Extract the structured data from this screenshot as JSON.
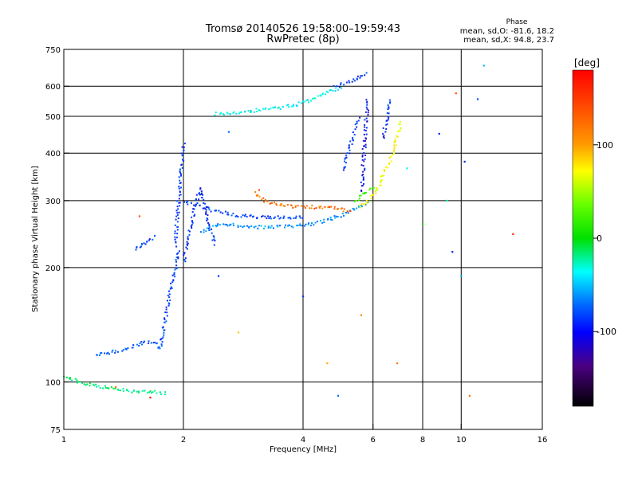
{
  "chart_data": {
    "type": "scatter",
    "title": "Tromsø 20140526  19:58:00–19:59:43",
    "subtitle": "RwPretec (8p)",
    "xlabel": "Frequency [MHz]",
    "ylabel": "Stationary phase Virtual Height [km]",
    "x_scale": "log",
    "y_scale": "log",
    "xlim": [
      1,
      16
    ],
    "ylim": [
      75,
      750
    ],
    "x_ticks": [
      1,
      2,
      4,
      6,
      8,
      10,
      16
    ],
    "x_ticklabels": [
      "1",
      "2",
      "4",
      "6",
      "8",
      "10",
      "16"
    ],
    "x_gridlines": [
      2,
      4,
      6,
      8,
      10
    ],
    "y_ticks": [
      75,
      100,
      200,
      300,
      400,
      500,
      600,
      750
    ],
    "y_ticklabels": [
      "75",
      "100",
      "200",
      "300",
      "400",
      "500",
      "600",
      "750"
    ],
    "y_gridlines": [
      100,
      200,
      300,
      400,
      500,
      600
    ],
    "grid": true,
    "stats": {
      "title": "Phase",
      "line1": "mean, sd,O: -81.6, 18.2",
      "line2": "mean, sd,X:  94.8, 23.7"
    },
    "colorbar": {
      "label": "[deg]",
      "range": [
        -180,
        180
      ],
      "ticks": [
        100,
        0,
        -100
      ],
      "ticklabels": [
        "100",
        "0",
        "-100"
      ]
    },
    "traces": [
      {
        "x": [
          1.0,
          1.1,
          1.2,
          1.35,
          1.5,
          1.65,
          1.75,
          1.8
        ],
        "y": [
          104,
          100,
          98,
          96,
          95,
          95,
          94,
          94
        ],
        "phase": -20
      },
      {
        "x": [
          1.2,
          1.3,
          1.4,
          1.5,
          1.6,
          1.7,
          1.75
        ],
        "y": [
          118,
          120,
          122,
          125,
          128,
          127,
          122
        ],
        "phase": -90
      },
      {
        "x": [
          1.75,
          1.78,
          1.82,
          1.86,
          1.9,
          1.94
        ],
        "y": [
          125,
          140,
          160,
          180,
          200,
          225
        ],
        "phase": -95
      },
      {
        "x": [
          1.5,
          1.55,
          1.6,
          1.65,
          1.7
        ],
        "y": [
          225,
          228,
          232,
          238,
          245
        ],
        "phase": -95
      },
      {
        "x": [
          1.9,
          1.92,
          1.94,
          1.96,
          1.98,
          2.0
        ],
        "y": [
          230,
          270,
          310,
          350,
          390,
          430
        ],
        "phase": -100
      },
      {
        "x": [
          2.0,
          2.05,
          2.1,
          2.15,
          2.2,
          2.25,
          2.3,
          2.4
        ],
        "y": [
          210,
          240,
          270,
          300,
          325,
          295,
          260,
          230
        ],
        "phase": -100
      },
      {
        "x": [
          2.2,
          2.5,
          2.8,
          3.2,
          3.7,
          4.2,
          4.6,
          5.0,
          5.3,
          5.6,
          5.8
        ],
        "y": [
          250,
          262,
          258,
          256,
          258,
          262,
          268,
          276,
          285,
          292,
          298
        ],
        "phase": -70
      },
      {
        "x": [
          2.0,
          2.2,
          2.5,
          2.8,
          3.2,
          3.6,
          4.0
        ],
        "y": [
          300,
          290,
          280,
          275,
          272,
          272,
          273
        ],
        "phase": -95
      },
      {
        "x": [
          3.0,
          3.2,
          3.5,
          3.8,
          4.1,
          4.4,
          4.7,
          5.0,
          5.3
        ],
        "y": [
          315,
          300,
          294,
          291,
          290,
          290,
          288,
          285,
          284
        ],
        "phase": 130
      },
      {
        "x": [
          5.5,
          5.8,
          6.1,
          6.4,
          6.7,
          6.9,
          7.0
        ],
        "y": [
          290,
          300,
          320,
          360,
          400,
          450,
          490
        ],
        "phase": 80
      },
      {
        "x": [
          5.4,
          5.6,
          5.8,
          6.0
        ],
        "y": [
          300,
          310,
          320,
          330
        ],
        "phase": 30
      },
      {
        "x": [
          2.4,
          2.6,
          2.8,
          3.0,
          3.3,
          3.6,
          3.9,
          4.2,
          4.5,
          4.8,
          5.0
        ],
        "y": [
          510,
          512,
          515,
          520,
          525,
          532,
          542,
          558,
          575,
          590,
          598
        ],
        "phase": -40
      },
      {
        "x": [
          4.8,
          5.0,
          5.2,
          5.4,
          5.6,
          5.8
        ],
        "y": [
          600,
          610,
          620,
          630,
          640,
          650
        ],
        "phase": -100
      },
      {
        "x": [
          5.6,
          5.65,
          5.7,
          5.75,
          5.8
        ],
        "y": [
          320,
          380,
          440,
          500,
          560
        ],
        "phase": -110
      },
      {
        "x": [
          5.0,
          5.1,
          5.2,
          5.3,
          5.4,
          5.5
        ],
        "y": [
          360,
          380,
          410,
          440,
          470,
          500
        ],
        "phase": -100
      },
      {
        "x": [
          6.3,
          6.5,
          6.6
        ],
        "y": [
          440,
          500,
          560
        ],
        "phase": -100
      }
    ],
    "points": [
      {
        "x": 1.35,
        "y": 97,
        "phase": 130
      },
      {
        "x": 1.65,
        "y": 91,
        "phase": 170
      },
      {
        "x": 1.55,
        "y": 273,
        "phase": 140
      },
      {
        "x": 2.45,
        "y": 190,
        "phase": -100
      },
      {
        "x": 2.75,
        "y": 135,
        "phase": 100
      },
      {
        "x": 2.6,
        "y": 455,
        "phase": -80
      },
      {
        "x": 3.1,
        "y": 320,
        "phase": 140
      },
      {
        "x": 4.0,
        "y": 168,
        "phase": -100
      },
      {
        "x": 4.6,
        "y": 112,
        "phase": 110
      },
      {
        "x": 4.9,
        "y": 92,
        "phase": -80
      },
      {
        "x": 5.6,
        "y": 150,
        "phase": 120
      },
      {
        "x": 6.9,
        "y": 112,
        "phase": 130
      },
      {
        "x": 7.3,
        "y": 365,
        "phase": -40
      },
      {
        "x": 8.0,
        "y": 260,
        "phase": 10
      },
      {
        "x": 8.8,
        "y": 450,
        "phase": -110
      },
      {
        "x": 9.2,
        "y": 300,
        "phase": -30
      },
      {
        "x": 9.5,
        "y": 220,
        "phase": -110
      },
      {
        "x": 9.7,
        "y": 575,
        "phase": 140
      },
      {
        "x": 10.0,
        "y": 190,
        "phase": -60
      },
      {
        "x": 10.2,
        "y": 380,
        "phase": -110
      },
      {
        "x": 10.5,
        "y": 92,
        "phase": 130
      },
      {
        "x": 11.0,
        "y": 555,
        "phase": -90
      },
      {
        "x": 11.4,
        "y": 680,
        "phase": -60
      },
      {
        "x": 13.5,
        "y": 245,
        "phase": 160
      }
    ]
  }
}
